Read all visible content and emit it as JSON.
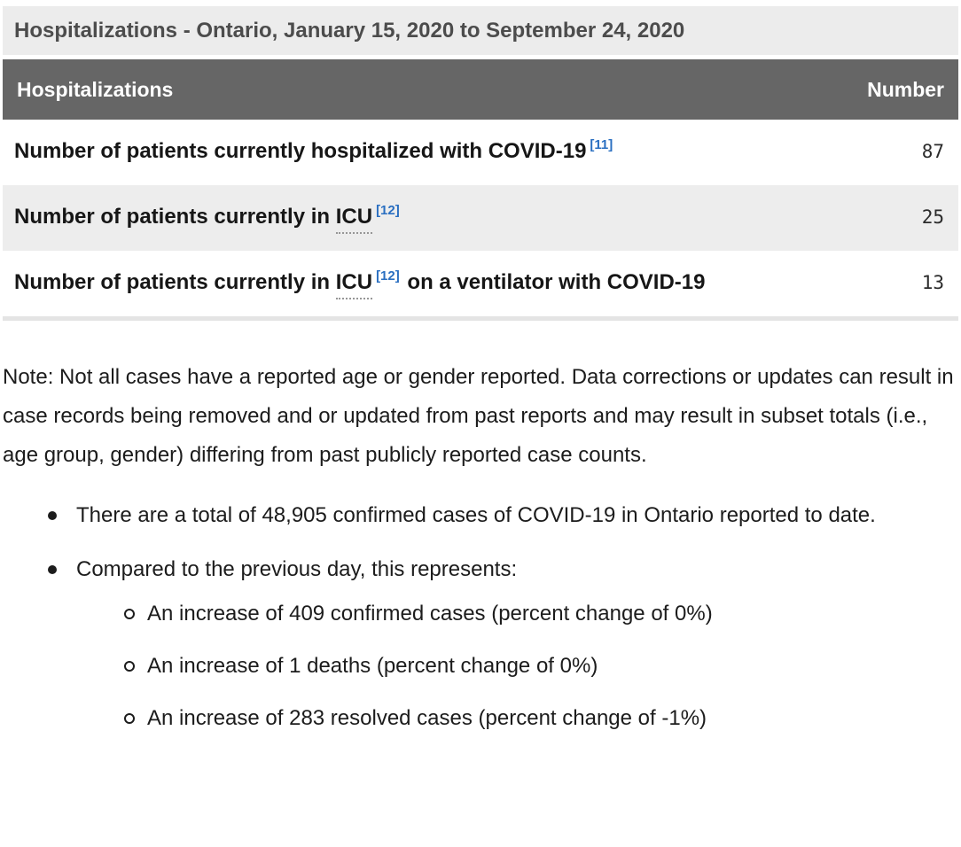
{
  "colors": {
    "caption_bg": "#ececec",
    "caption_text": "#4c4c4c",
    "table_header_bg": "#666666",
    "table_header_text": "#ffffff",
    "shaded_row_bg": "#ededed",
    "footnote_link_blue": "#2a6fc1",
    "body_text": "#1a1a1a"
  },
  "table": {
    "caption": "Hospitalizations - Ontario, January 15, 2020 to September 24, 2020",
    "header": {
      "label": "Hospitalizations",
      "value": "Number"
    },
    "rows": [
      {
        "pre": "Number of patients currently hospitalized with COVID-19",
        "abbr": "",
        "footnote": "[11]",
        "post": "",
        "value": "87"
      },
      {
        "pre": "Number of patients currently in ",
        "abbr": "ICU",
        "footnote": "[12]",
        "post": "",
        "value": "25"
      },
      {
        "pre": "Number of patients currently in ",
        "abbr": "ICU",
        "footnote": "[12]",
        "post": " on a ventilator with COVID-19",
        "value": "13"
      }
    ]
  },
  "note": "Note: Not all cases have a reported age or gender reported. Data corrections or updates can result in case records being removed and or updated from past reports and may result in subset totals (i.e., age group, gender) differing from past publicly reported case counts.",
  "bullets": [
    {
      "text": "There are a total of 48,905 confirmed cases of COVID-19 in Ontario reported to date.",
      "children": []
    },
    {
      "text": "Compared to the previous day, this represents:",
      "children": [
        "An increase of 409 confirmed cases (percent change of 0%)",
        "An increase of 1 deaths (percent change of 0%)",
        "An increase of 283 resolved cases (percent change of -1%)"
      ]
    }
  ]
}
